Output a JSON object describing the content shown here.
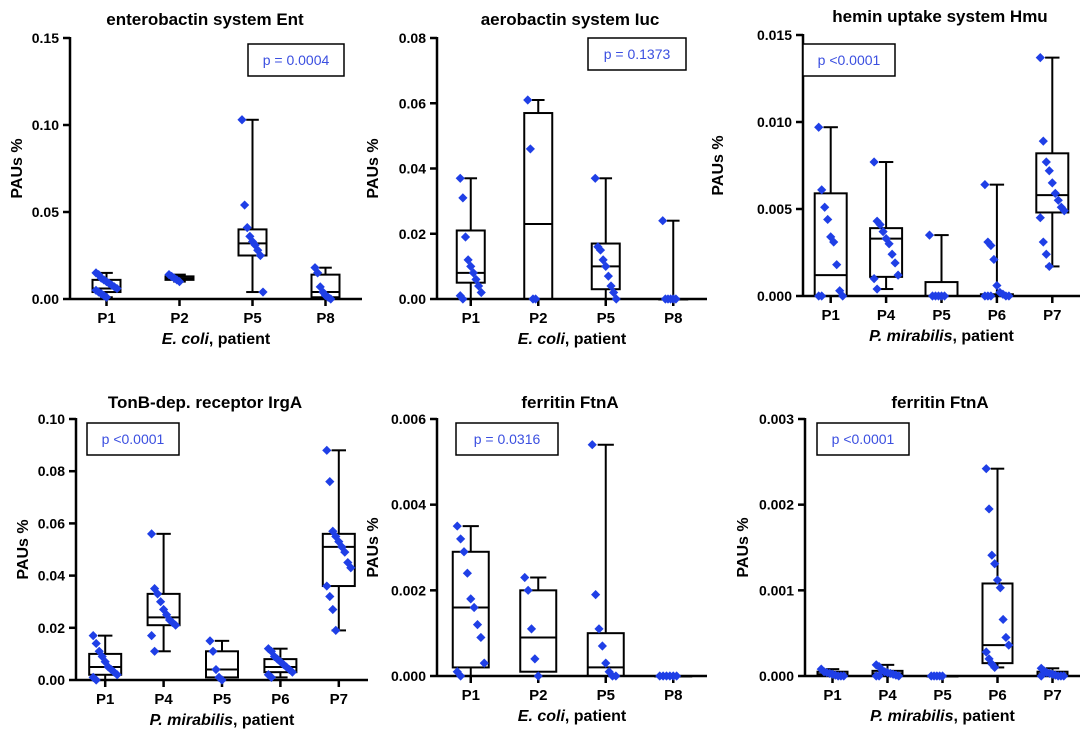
{
  "colors": {
    "point": "#1f3fe6",
    "pvalue_text": "#3b4fe0",
    "axis": "#000000"
  },
  "chart_data": [
    {
      "type": "box",
      "title": "enterobactin system Ent",
      "ylabel": "PAUs %",
      "xlabel_italic": "E. coli",
      "xlabel_rest": ", patient",
      "ylim": [
        0,
        0.15
      ],
      "yticks": [
        0.0,
        0.05,
        0.1,
        0.15
      ],
      "ytick_labels": [
        "0.00",
        "0.05",
        "0.10",
        "0.15"
      ],
      "pvalue": "p = 0.0004",
      "pvalue_pos": "top-right",
      "categories": [
        "P1",
        "P2",
        "P5",
        "P8"
      ],
      "boxes": [
        {
          "min": 0.001,
          "q1": 0.004,
          "median": 0.006,
          "q3": 0.011,
          "max": 0.015,
          "points": [
            0.015,
            0.014,
            0.012,
            0.011,
            0.01,
            0.009,
            0.008,
            0.007,
            0.006,
            0.005,
            0.004,
            0.003,
            0.002,
            0.001
          ]
        },
        {
          "min": 0.01,
          "q1": 0.011,
          "median": 0.012,
          "q3": 0.013,
          "max": 0.014,
          "points": [
            0.014,
            0.013,
            0.012,
            0.011,
            0.01
          ]
        },
        {
          "min": 0.004,
          "q1": 0.025,
          "median": 0.032,
          "q3": 0.04,
          "max": 0.103,
          "points": [
            0.103,
            0.054,
            0.041,
            0.036,
            0.033,
            0.031,
            0.028,
            0.025,
            0.004
          ]
        },
        {
          "min": 0.0,
          "q1": 0.001,
          "median": 0.004,
          "q3": 0.014,
          "max": 0.018,
          "points": [
            0.018,
            0.015,
            0.007,
            0.004,
            0.002,
            0.001,
            0.0
          ]
        }
      ]
    },
    {
      "type": "box",
      "title": "aerobactin system Iuc",
      "ylabel": "PAUs %",
      "xlabel_italic": "E. coli",
      "xlabel_rest": ", patient",
      "ylim": [
        0,
        0.08
      ],
      "yticks": [
        0.0,
        0.02,
        0.04,
        0.06,
        0.08
      ],
      "ytick_labels": [
        "0.00",
        "0.02",
        "0.04",
        "0.06",
        "0.08"
      ],
      "pvalue": "p = 0.1373",
      "pvalue_pos": "top-right",
      "categories": [
        "P1",
        "P2",
        "P5",
        "P8"
      ],
      "boxes": [
        {
          "min": 0.0,
          "q1": 0.005,
          "median": 0.008,
          "q3": 0.021,
          "max": 0.037,
          "points": [
            0.037,
            0.031,
            0.019,
            0.012,
            0.01,
            0.008,
            0.006,
            0.004,
            0.002,
            0.001,
            0.0
          ]
        },
        {
          "min": 0.0,
          "q1": 0.0,
          "median": 0.023,
          "q3": 0.057,
          "max": 0.061,
          "points": [
            0.061,
            0.046,
            0.0,
            0.0
          ]
        },
        {
          "min": 0.0,
          "q1": 0.003,
          "median": 0.01,
          "q3": 0.017,
          "max": 0.037,
          "points": [
            0.037,
            0.016,
            0.015,
            0.012,
            0.01,
            0.007,
            0.004,
            0.002,
            0.0
          ]
        },
        {
          "min": 0.0,
          "q1": 0.0,
          "median": 0.0,
          "q3": 0.0,
          "max": 0.024,
          "points": [
            0.024,
            0.0,
            0.0,
            0.0,
            0.0,
            0.0
          ]
        }
      ]
    },
    {
      "type": "box",
      "title": "hemin uptake system Hmu",
      "ylabel": "PAUs %",
      "xlabel_italic": "P. mirabilis",
      "xlabel_rest": ", patient",
      "ylim": [
        0,
        0.015
      ],
      "yticks": [
        0.0,
        0.005,
        0.01,
        0.015
      ],
      "ytick_labels": [
        "0.000",
        "0.005",
        "0.010",
        "0.015"
      ],
      "pvalue": "p <0.0001",
      "pvalue_pos": "top-left",
      "categories": [
        "P1",
        "P4",
        "P5",
        "P6",
        "P7"
      ],
      "boxes": [
        {
          "min": 0.0,
          "q1": 0.0,
          "median": 0.0012,
          "q3": 0.0059,
          "max": 0.0097,
          "points": [
            0.0097,
            0.0061,
            0.0051,
            0.0044,
            0.0034,
            0.0031,
            0.0018,
            0.0003,
            0.0,
            0.0,
            0.0
          ]
        },
        {
          "min": 0.0004,
          "q1": 0.0011,
          "median": 0.0033,
          "q3": 0.0039,
          "max": 0.0077,
          "points": [
            0.0077,
            0.0043,
            0.0041,
            0.0037,
            0.0033,
            0.003,
            0.0024,
            0.0019,
            0.0012,
            0.001,
            0.0004
          ]
        },
        {
          "min": 0.0,
          "q1": 0.0,
          "median": 0.0,
          "q3": 0.0008,
          "max": 0.0035,
          "points": [
            0.0035,
            0.0,
            0.0,
            0.0,
            0.0,
            0.0
          ]
        },
        {
          "min": 0.0,
          "q1": 0.0,
          "median": 0.0,
          "q3": 0.0001,
          "max": 0.0064,
          "points": [
            0.0064,
            0.0031,
            0.0029,
            0.0021,
            0.0006,
            0.0002,
            0.0001,
            0.0,
            0.0,
            0.0,
            0.0,
            0.0
          ]
        },
        {
          "min": 0.0017,
          "q1": 0.0048,
          "median": 0.0058,
          "q3": 0.0082,
          "max": 0.0137,
          "points": [
            0.0137,
            0.0089,
            0.0077,
            0.0072,
            0.0065,
            0.0059,
            0.0055,
            0.0051,
            0.0049,
            0.0045,
            0.0031,
            0.0024,
            0.0017
          ]
        }
      ]
    },
    {
      "type": "box",
      "title": "TonB-dep. receptor IrgA",
      "ylabel": "PAUs %",
      "xlabel_italic": "P. mirabilis",
      "xlabel_rest": ", patient",
      "ylim": [
        0,
        0.1
      ],
      "yticks": [
        0.0,
        0.02,
        0.04,
        0.06,
        0.08,
        0.1
      ],
      "ytick_labels": [
        "0.00",
        "0.02",
        "0.04",
        "0.06",
        "0.08",
        "0.10"
      ],
      "pvalue": "p <0.0001",
      "pvalue_pos": "top-left",
      "categories": [
        "P1",
        "P4",
        "P5",
        "P6",
        "P7"
      ],
      "boxes": [
        {
          "min": 0.0,
          "q1": 0.002,
          "median": 0.005,
          "q3": 0.01,
          "max": 0.017,
          "points": [
            0.017,
            0.014,
            0.011,
            0.009,
            0.007,
            0.005,
            0.004,
            0.003,
            0.002,
            0.001,
            0.0
          ]
        },
        {
          "min": 0.011,
          "q1": 0.021,
          "median": 0.024,
          "q3": 0.033,
          "max": 0.056,
          "points": [
            0.056,
            0.035,
            0.033,
            0.03,
            0.027,
            0.025,
            0.023,
            0.022,
            0.021,
            0.017,
            0.011
          ]
        },
        {
          "min": 0.0,
          "q1": 0.001,
          "median": 0.004,
          "q3": 0.011,
          "max": 0.015,
          "points": [
            0.015,
            0.011,
            0.004,
            0.001,
            0.0
          ]
        },
        {
          "min": 0.001,
          "q1": 0.003,
          "median": 0.005,
          "q3": 0.008,
          "max": 0.012,
          "points": [
            0.012,
            0.011,
            0.009,
            0.008,
            0.007,
            0.006,
            0.005,
            0.004,
            0.003,
            0.002,
            0.001
          ]
        },
        {
          "min": 0.019,
          "q1": 0.036,
          "median": 0.051,
          "q3": 0.056,
          "max": 0.088,
          "points": [
            0.088,
            0.076,
            0.057,
            0.055,
            0.053,
            0.051,
            0.049,
            0.045,
            0.043,
            0.036,
            0.032,
            0.027,
            0.019
          ]
        }
      ]
    },
    {
      "type": "box",
      "title": "ferritin FtnA",
      "ylabel": "PAUs %",
      "xlabel_italic": "E. coli",
      "xlabel_rest": ", patient",
      "ylim": [
        0,
        0.006
      ],
      "yticks": [
        0.0,
        0.002,
        0.004,
        0.006
      ],
      "ytick_labels": [
        "0.000",
        "0.002",
        "0.004",
        "0.006"
      ],
      "pvalue": "p = 0.0316",
      "pvalue_pos": "top-left",
      "categories": [
        "P1",
        "P2",
        "P5",
        "P8"
      ],
      "boxes": [
        {
          "min": 0.0,
          "q1": 0.0002,
          "median": 0.0016,
          "q3": 0.0029,
          "max": 0.0035,
          "points": [
            0.0035,
            0.0032,
            0.0029,
            0.0024,
            0.0018,
            0.0016,
            0.0012,
            0.0009,
            0.0003,
            0.0001,
            0.0
          ]
        },
        {
          "min": 0.0,
          "q1": 0.0001,
          "median": 0.0009,
          "q3": 0.002,
          "max": 0.0023,
          "points": [
            0.0023,
            0.002,
            0.0011,
            0.0004,
            0.0
          ]
        },
        {
          "min": 0.0,
          "q1": 0.0,
          "median": 0.0002,
          "q3": 0.001,
          "max": 0.0054,
          "points": [
            0.0054,
            0.0019,
            0.0011,
            0.0007,
            0.0003,
            0.0001,
            0.0,
            0.0
          ]
        },
        {
          "min": 0.0,
          "q1": 0.0,
          "median": 0.0,
          "q3": 0.0,
          "max": 0.0,
          "points": [
            0.0,
            0.0,
            0.0,
            0.0,
            0.0,
            0.0
          ]
        }
      ]
    },
    {
      "type": "box",
      "title": "ferritin FtnA",
      "ylabel": "PAUs %",
      "xlabel_italic": "P. mirabilis",
      "xlabel_rest": ", patient",
      "ylim": [
        0,
        0.003
      ],
      "yticks": [
        0.0,
        0.001,
        0.002,
        0.003
      ],
      "ytick_labels": [
        "0.000",
        "0.001",
        "0.002",
        "0.003"
      ],
      "pvalue": "p <0.0001",
      "pvalue_pos": "top-left",
      "categories": [
        "P1",
        "P4",
        "P5",
        "P6",
        "P7"
      ],
      "boxes": [
        {
          "min": 0.0,
          "q1": 0.0,
          "median": 2e-05,
          "q3": 5e-05,
          "max": 8e-05,
          "points": [
            8e-05,
            5e-05,
            4e-05,
            3e-05,
            2e-05,
            1e-05,
            0.0,
            0.0,
            0.0
          ]
        },
        {
          "min": 0.0,
          "q1": 1e-05,
          "median": 3e-05,
          "q3": 6e-05,
          "max": 0.00013,
          "points": [
            0.00013,
            0.00011,
            7e-05,
            5e-05,
            4e-05,
            3e-05,
            2e-05,
            1e-05,
            0.0,
            0.0,
            0.0
          ]
        },
        {
          "min": 0.0,
          "q1": 0.0,
          "median": 0.0,
          "q3": 0.0,
          "max": 0.0,
          "points": [
            0.0,
            0.0,
            0.0,
            0.0,
            0.0
          ]
        },
        {
          "min": 0.0001,
          "q1": 0.00015,
          "median": 0.00036,
          "q3": 0.00108,
          "max": 0.00242,
          "points": [
            0.00242,
            0.00195,
            0.00141,
            0.00131,
            0.00112,
            0.00103,
            0.00066,
            0.00045,
            0.00036,
            0.00028,
            0.0002,
            0.00014,
            0.0001
          ]
        },
        {
          "min": 0.0,
          "q1": 0.0,
          "median": 2e-05,
          "q3": 5e-05,
          "max": 9e-05,
          "points": [
            9e-05,
            6e-05,
            4e-05,
            3e-05,
            2e-05,
            1e-05,
            0.0,
            0.0,
            0.0,
            0.0
          ]
        }
      ]
    }
  ]
}
